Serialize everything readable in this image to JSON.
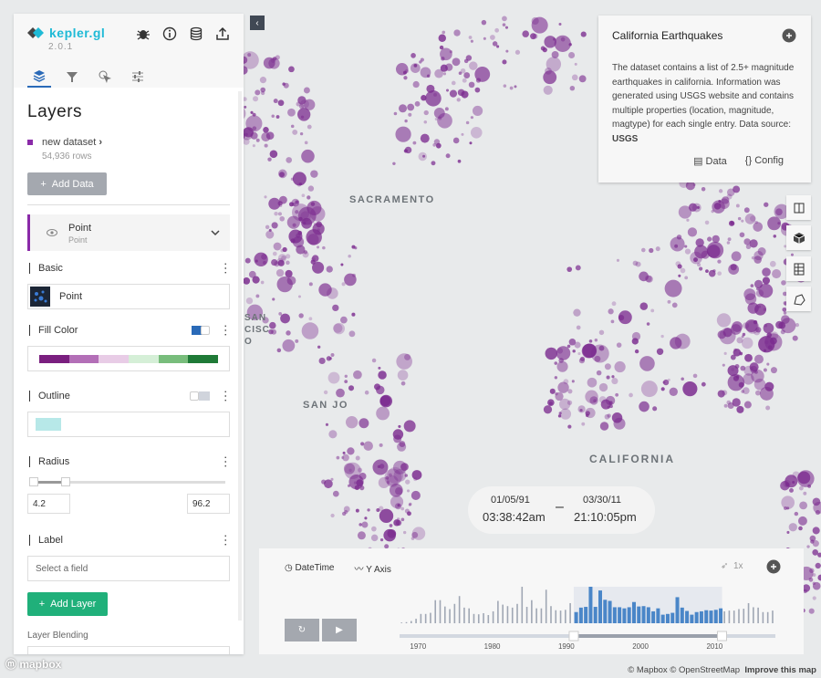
{
  "app": {
    "name": "kepler.gl",
    "version": "2.0.1"
  },
  "header_icons": [
    "bug-icon",
    "info-icon",
    "database-icon",
    "share-icon"
  ],
  "tabs": [
    {
      "name": "layers",
      "icon": "layers-icon",
      "active": true
    },
    {
      "name": "filters",
      "icon": "filter-icon"
    },
    {
      "name": "interactions",
      "icon": "cursor-icon"
    },
    {
      "name": "map-style",
      "icon": "sliders-icon"
    }
  ],
  "panel": {
    "title": "Layers",
    "dataset": {
      "name": "new dataset",
      "rows": "54,936 rows",
      "color": "#8a2aa8"
    },
    "add_data": "Add Data",
    "layer": {
      "name": "Point",
      "type": "Point",
      "basic": {
        "label": "Basic",
        "type": "Point"
      },
      "fill_color": {
        "label": "Fill Color",
        "enabled": true,
        "palette": [
          "#7a1f7f",
          "#b36fb7",
          "#e8cce6",
          "#d5efd7",
          "#78bd7c",
          "#1f7a37"
        ]
      },
      "outline": {
        "label": "Outline",
        "enabled": false,
        "color": "#b7e8e8"
      },
      "radius": {
        "label": "Radius",
        "min": "4.2",
        "max": "96.2"
      },
      "label": {
        "label": "Label",
        "placeholder": "Select a field"
      }
    },
    "add_layer": "Add Layer",
    "blending": "Layer Blending"
  },
  "map": {
    "labels": [
      "SACRAMENTO",
      "CALIFORNIA",
      "SAN JO",
      "SAN CISCO"
    ],
    "point_color": "#7b2b8f"
  },
  "info": {
    "title": "California Earthquakes",
    "description": "The dataset contains a list of 2.5+ magnitude earthquakes in california. Information was generated using USGS website and contains multiple properties (location, magnitude, magtype) for each single entry. Data source: ",
    "source": "USGS",
    "data_btn": "Data",
    "config_btn": "Config"
  },
  "map_controls": [
    "split-map-icon",
    "3d-icon",
    "legend-icon",
    "draw-icon"
  ],
  "time_window": {
    "start_date": "01/05/91",
    "start_time": "03:38:42am",
    "dash": "–",
    "end_date": "03/30/11",
    "end_time": "21:10:05pm"
  },
  "timeline": {
    "field": "DateTime",
    "y_axis": "Y Axis",
    "speed": "1x",
    "ticks": [
      "1970",
      "1980",
      "1990",
      "2000",
      "2010"
    ],
    "selected_range": [
      1991,
      2011
    ],
    "histogram": [
      2,
      3,
      6,
      12,
      25,
      25,
      28,
      62,
      62,
      45,
      38,
      52,
      73,
      42,
      40,
      25,
      24,
      27,
      22,
      32,
      60,
      50,
      46,
      42,
      52,
      98,
      44,
      62,
      40,
      40,
      90,
      46,
      35,
      34,
      36,
      54,
      30,
      42,
      44,
      98,
      44,
      88,
      63,
      60,
      43,
      43,
      40,
      43,
      57,
      45,
      46,
      43,
      32,
      40,
      23,
      25,
      28,
      70,
      42,
      33,
      23,
      30,
      32,
      35,
      34,
      36,
      40,
      32,
      34,
      34,
      38,
      39,
      54,
      43,
      42,
      30,
      30,
      34
    ],
    "bar_color": "#a0a7b4",
    "selected_color": "#4a86c8"
  },
  "attribution": {
    "mapbox": "© Mapbox",
    "osm": "© OpenStreetMap",
    "improve": "Improve this map",
    "logo": "mapbox"
  }
}
